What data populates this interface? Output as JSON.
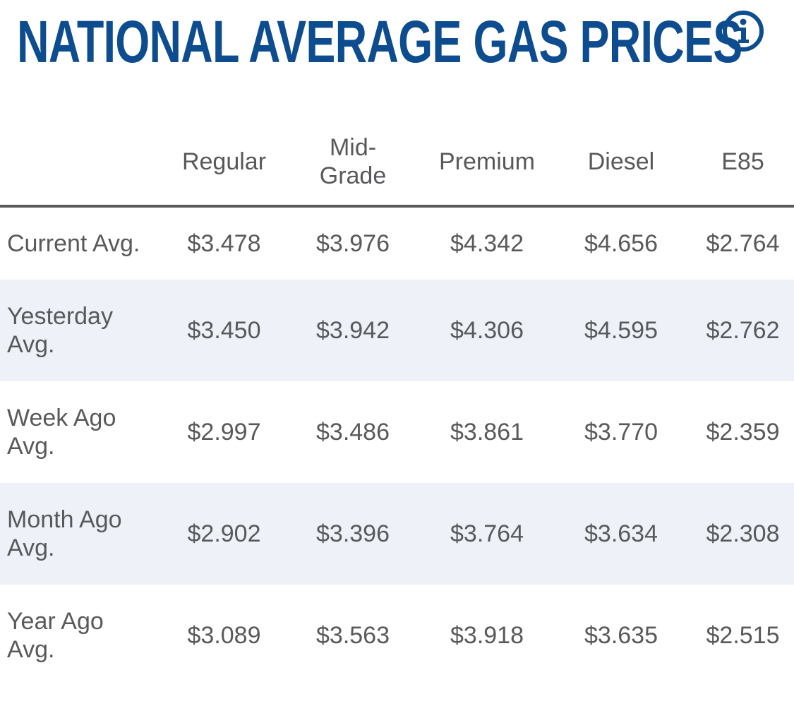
{
  "header": {
    "title": "NATIONAL AVERAGE GAS PRICES",
    "info_icon": "info-circle-icon",
    "accent_color": "#0d4d8f"
  },
  "table": {
    "columns": [
      "",
      "Regular",
      "Mid-Grade",
      "Premium",
      "Diesel",
      "E85"
    ],
    "rows": [
      {
        "label": "Current Avg.",
        "values": [
          "$3.478",
          "$3.976",
          "$4.342",
          "$4.656",
          "$2.764"
        ]
      },
      {
        "label": "Yesterday Avg.",
        "values": [
          "$3.450",
          "$3.942",
          "$4.306",
          "$4.595",
          "$2.762"
        ]
      },
      {
        "label": "Week Ago Avg.",
        "values": [
          "$2.997",
          "$3.486",
          "$3.861",
          "$3.770",
          "$2.359"
        ]
      },
      {
        "label": "Month Ago Avg.",
        "values": [
          "$2.902",
          "$3.396",
          "$3.764",
          "$3.634",
          "$2.308"
        ]
      },
      {
        "label": "Year Ago Avg.",
        "values": [
          "$3.089",
          "$3.563",
          "$3.918",
          "$3.635",
          "$2.515"
        ]
      }
    ],
    "shade_color": "#eef2f8"
  }
}
